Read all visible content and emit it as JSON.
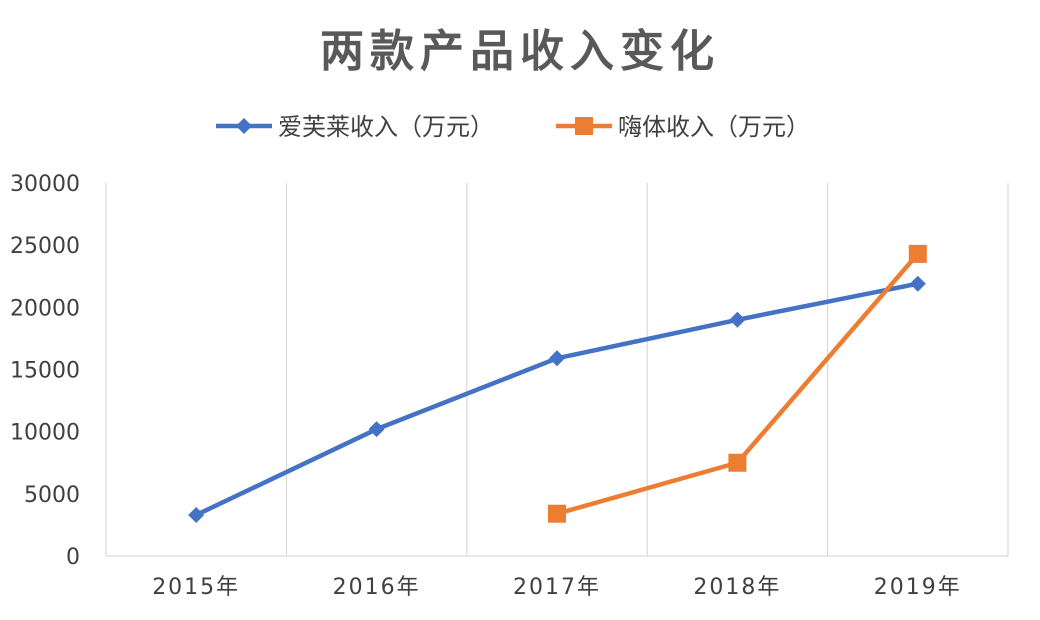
{
  "chart_data": {
    "type": "line",
    "title": "两款产品收入变化",
    "categories": [
      "2015年",
      "2016年",
      "2017年",
      "2018年",
      "2019年"
    ],
    "series": [
      {
        "name": "爱芙莱收入（万元）",
        "values": [
          3300,
          10200,
          15900,
          19000,
          21900
        ],
        "color": "#4472c4",
        "marker": "diamond"
      },
      {
        "name": "嗨体收入（万元）",
        "values": [
          null,
          null,
          3400,
          7500,
          24300
        ],
        "color": "#ed7d31",
        "marker": "square"
      }
    ],
    "xlabel": "",
    "ylabel": "",
    "ylim": [
      0,
      30000
    ],
    "yticks": [
      0,
      5000,
      10000,
      15000,
      20000,
      25000,
      30000
    ],
    "grid": "vertical",
    "legend": "top"
  }
}
